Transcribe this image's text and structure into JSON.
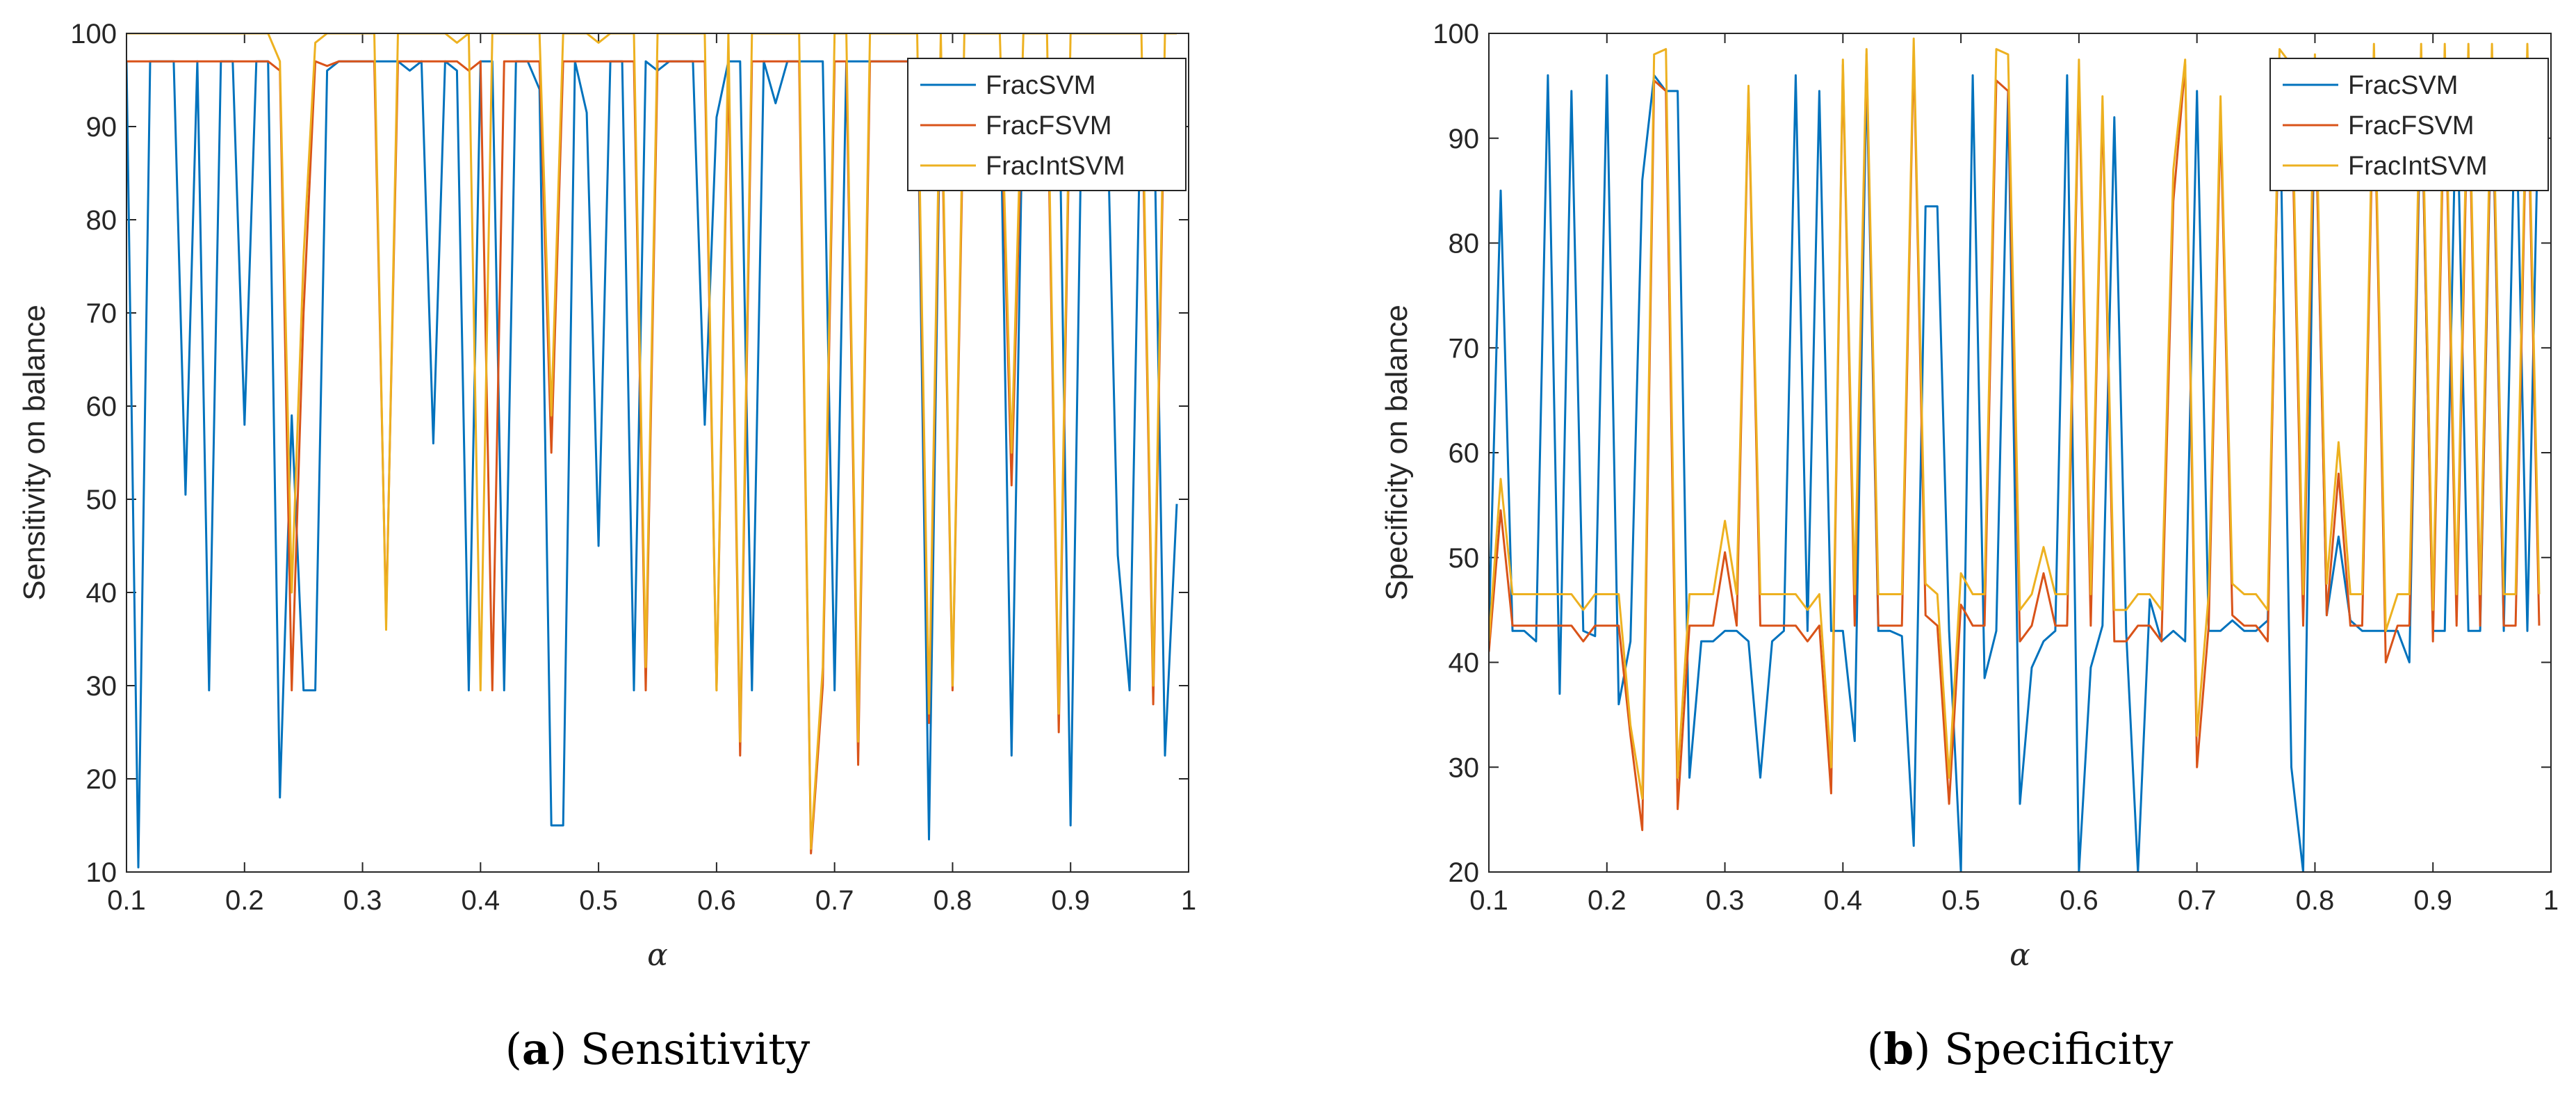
{
  "chart_data": [
    {
      "type": "line",
      "panel": "a",
      "caption_letter": "a",
      "caption_text": "Sensitivity",
      "xlabel": "α",
      "ylabel": "Sensitivity on balance",
      "xlim": [
        0.1,
        1
      ],
      "ylim": [
        10,
        100
      ],
      "xticks": [
        0.1,
        0.2,
        0.3,
        0.4,
        0.5,
        0.6,
        0.7,
        0.8,
        0.9,
        1
      ],
      "xtick_labels": [
        "0.1",
        "0.2",
        "0.3",
        "0.4",
        "0.5",
        "0.6",
        "0.7",
        "0.8",
        "0.9",
        "1"
      ],
      "yticks": [
        10,
        20,
        30,
        40,
        50,
        60,
        70,
        80,
        90,
        100
      ],
      "ytick_labels": [
        "10",
        "20",
        "30",
        "40",
        "50",
        "60",
        "70",
        "80",
        "90",
        "100"
      ],
      "legend_position": "top-right",
      "x": [
        0.1,
        0.11,
        0.12,
        0.13,
        0.14,
        0.15,
        0.16,
        0.17,
        0.18,
        0.19,
        0.2,
        0.21,
        0.22,
        0.23,
        0.24,
        0.25,
        0.26,
        0.27,
        0.28,
        0.29,
        0.3,
        0.31,
        0.32,
        0.33,
        0.34,
        0.35,
        0.36,
        0.37,
        0.38,
        0.39,
        0.4,
        0.41,
        0.42,
        0.43,
        0.44,
        0.45,
        0.46,
        0.47,
        0.48,
        0.49,
        0.5,
        0.51,
        0.52,
        0.53,
        0.54,
        0.55,
        0.56,
        0.57,
        0.58,
        0.59,
        0.6,
        0.61,
        0.62,
        0.63,
        0.64,
        0.65,
        0.66,
        0.67,
        0.68,
        0.69,
        0.7,
        0.71,
        0.72,
        0.73,
        0.74,
        0.75,
        0.76,
        0.77,
        0.78,
        0.79,
        0.8,
        0.81,
        0.82,
        0.83,
        0.84,
        0.85,
        0.86,
        0.87,
        0.88,
        0.89,
        0.9,
        0.91,
        0.92,
        0.93,
        0.94,
        0.95,
        0.96,
        0.97,
        0.98,
        0.99
      ],
      "series": [
        {
          "name": "FracSVM",
          "color": "#0072BD",
          "values": [
            97,
            10.5,
            97,
            97,
            97,
            50.5,
            97,
            29.5,
            97,
            97,
            58,
            97,
            97,
            18,
            59,
            29.5,
            29.5,
            96,
            97,
            97,
            97,
            97,
            97,
            97,
            96,
            97,
            56,
            97,
            96,
            29.5,
            97,
            97,
            29.5,
            97,
            97,
            94,
            15,
            15,
            97,
            91.5,
            45,
            97,
            97,
            29.5,
            97,
            96,
            97,
            97,
            97,
            58,
            91,
            97,
            97,
            29.5,
            97,
            92.5,
            97,
            97,
            97,
            97,
            29.5,
            97,
            97,
            97,
            97,
            97,
            97,
            97,
            13.5,
            97,
            97,
            97,
            97,
            97,
            97,
            22.5,
            97,
            97,
            97,
            97,
            15,
            97,
            97,
            97,
            44,
            29.5,
            97,
            97,
            22.5,
            49.5
          ]
        },
        {
          "name": "FracFSVM",
          "color": "#D95319",
          "values": [
            97,
            97,
            97,
            97,
            97,
            97,
            97,
            97,
            97,
            97,
            97,
            97,
            97,
            96,
            29.5,
            70,
            97,
            96.5,
            97,
            97,
            97,
            97,
            37,
            97,
            97,
            97,
            97,
            97,
            97,
            96,
            97,
            29.5,
            97,
            97,
            97,
            97,
            55,
            97,
            97,
            97,
            97,
            97,
            97,
            97,
            29.5,
            97,
            97,
            97,
            97,
            97,
            29.5,
            97,
            22.5,
            97,
            97,
            97,
            97,
            97,
            12,
            30,
            97,
            97,
            21.5,
            97,
            97,
            97,
            97,
            97,
            26,
            97,
            29.5,
            97,
            97,
            97,
            97,
            51.5,
            97,
            97,
            97,
            25,
            97,
            97,
            97,
            97,
            97,
            97,
            97,
            28,
            97,
            97
          ]
        },
        {
          "name": "FracIntSVM",
          "color": "#EDB120",
          "values": [
            100,
            100,
            100,
            100,
            100,
            100,
            100,
            100,
            100,
            100,
            100,
            100,
            100,
            97,
            40,
            76,
            99,
            100,
            100,
            100,
            100,
            100,
            36,
            100,
            100,
            100,
            100,
            100,
            99,
            100,
            29.5,
            100,
            100,
            100,
            100,
            100,
            59,
            100,
            100,
            100,
            99,
            100,
            100,
            100,
            32,
            100,
            100,
            100,
            100,
            100,
            29.5,
            100,
            24,
            100,
            100,
            100,
            100,
            100,
            12.5,
            32,
            100,
            100,
            24,
            100,
            100,
            100,
            100,
            100,
            27,
            100,
            30,
            100,
            100,
            100,
            100,
            55,
            100,
            100,
            100,
            27,
            100,
            100,
            100,
            100,
            100,
            100,
            100,
            30,
            100,
            100
          ]
        }
      ]
    },
    {
      "type": "line",
      "panel": "b",
      "caption_letter": "b",
      "caption_text": "Specificity",
      "xlabel": "α",
      "ylabel": "Specificity on balance",
      "xlim": [
        0.1,
        1
      ],
      "ylim": [
        20,
        100
      ],
      "xticks": [
        0.1,
        0.2,
        0.3,
        0.4,
        0.5,
        0.6,
        0.7,
        0.8,
        0.9,
        1
      ],
      "xtick_labels": [
        "0.1",
        "0.2",
        "0.3",
        "0.4",
        "0.5",
        "0.6",
        "0.7",
        "0.8",
        "0.9",
        "1"
      ],
      "yticks": [
        20,
        30,
        40,
        50,
        60,
        70,
        80,
        90,
        100
      ],
      "ytick_labels": [
        "20",
        "30",
        "40",
        "50",
        "60",
        "70",
        "80",
        "90",
        "100"
      ],
      "legend_position": "top-right",
      "x": [
        0.1,
        0.11,
        0.12,
        0.13,
        0.14,
        0.15,
        0.16,
        0.17,
        0.18,
        0.19,
        0.2,
        0.21,
        0.22,
        0.23,
        0.24,
        0.25,
        0.26,
        0.27,
        0.28,
        0.29,
        0.3,
        0.31,
        0.32,
        0.33,
        0.34,
        0.35,
        0.36,
        0.37,
        0.38,
        0.39,
        0.4,
        0.41,
        0.42,
        0.43,
        0.44,
        0.45,
        0.46,
        0.47,
        0.48,
        0.49,
        0.5,
        0.51,
        0.52,
        0.53,
        0.54,
        0.55,
        0.56,
        0.57,
        0.58,
        0.59,
        0.6,
        0.61,
        0.62,
        0.63,
        0.64,
        0.65,
        0.66,
        0.67,
        0.68,
        0.69,
        0.7,
        0.71,
        0.72,
        0.73,
        0.74,
        0.75,
        0.76,
        0.77,
        0.78,
        0.79,
        0.8,
        0.81,
        0.82,
        0.83,
        0.84,
        0.85,
        0.86,
        0.87,
        0.88,
        0.89,
        0.9,
        0.91,
        0.92,
        0.93,
        0.94,
        0.95,
        0.96,
        0.97,
        0.98,
        0.99
      ],
      "series": [
        {
          "name": "FracSVM",
          "color": "#0072BD",
          "values": [
            43,
            85,
            43,
            43,
            42,
            96,
            37,
            94.5,
            43,
            42.5,
            96,
            36,
            42,
            86,
            96,
            94.5,
            94.5,
            29,
            42,
            42,
            43,
            43,
            42,
            29,
            42,
            43,
            96,
            43,
            94.5,
            43,
            43,
            32.5,
            96,
            43,
            43,
            42.5,
            22.5,
            83.5,
            83.5,
            43,
            20,
            96,
            38.5,
            43,
            94.5,
            26.5,
            39.5,
            42,
            43,
            96,
            20,
            39.5,
            43.5,
            92,
            43,
            20,
            46,
            42,
            43,
            42,
            94.5,
            43,
            43,
            44,
            43,
            43,
            44,
            96,
            30,
            20,
            96,
            44.5,
            52,
            44,
            43,
            43,
            43,
            43,
            40,
            96,
            43,
            43,
            96,
            43,
            43,
            96,
            43,
            96,
            43,
            96
          ]
        },
        {
          "name": "FracFSVM",
          "color": "#D95319",
          "values": [
            41,
            54.5,
            43.5,
            43.5,
            43.5,
            43.5,
            43.5,
            43.5,
            42,
            43.5,
            43.5,
            43.5,
            33,
            24,
            95.5,
            94.5,
            26,
            43.5,
            43.5,
            43.5,
            50.5,
            43.5,
            94.5,
            43.5,
            43.5,
            43.5,
            43.5,
            42,
            43.5,
            27.5,
            97,
            43.5,
            98,
            43.5,
            43.5,
            43.5,
            98.5,
            44.5,
            43.5,
            26.5,
            45.5,
            43.5,
            43.5,
            95.5,
            94.5,
            42,
            43.5,
            48.5,
            43.5,
            43.5,
            96,
            43.5,
            93,
            42,
            42,
            43.5,
            43.5,
            42,
            84,
            97,
            30,
            43.5,
            92,
            44.5,
            43.5,
            43.5,
            42,
            97,
            94.5,
            43.5,
            95,
            44.5,
            58,
            43.5,
            43.5,
            97,
            40,
            43.5,
            43.5,
            97,
            42,
            97,
            43.5,
            97,
            43.5,
            97,
            43.5,
            43.5,
            97,
            43.5
          ]
        },
        {
          "name": "FracIntSVM",
          "color": "#EDB120",
          "values": [
            42,
            57.5,
            46.5,
            46.5,
            46.5,
            46.5,
            46.5,
            46.5,
            45,
            46.5,
            46.5,
            46.5,
            34,
            27,
            98,
            98.5,
            29,
            46.5,
            46.5,
            46.5,
            53.5,
            46.5,
            95,
            46.5,
            46.5,
            46.5,
            46.5,
            45,
            46.5,
            30,
            97.5,
            46.5,
            98.5,
            46.5,
            46.5,
            46.5,
            99.5,
            47.5,
            46.5,
            29,
            48.5,
            46.5,
            46.5,
            98.5,
            98,
            45,
            46.5,
            51,
            46.5,
            46.5,
            97.5,
            46.5,
            94,
            45,
            45,
            46.5,
            46.5,
            45,
            87,
            97.5,
            33,
            46.5,
            94,
            47.5,
            46.5,
            46.5,
            45,
            98.5,
            97,
            46.5,
            98,
            47.5,
            61,
            46.5,
            46.5,
            99,
            43,
            46.5,
            46.5,
            99,
            45,
            99,
            46.5,
            99,
            46.5,
            99,
            46.5,
            46.5,
            99,
            46.5
          ]
        }
      ]
    }
  ]
}
